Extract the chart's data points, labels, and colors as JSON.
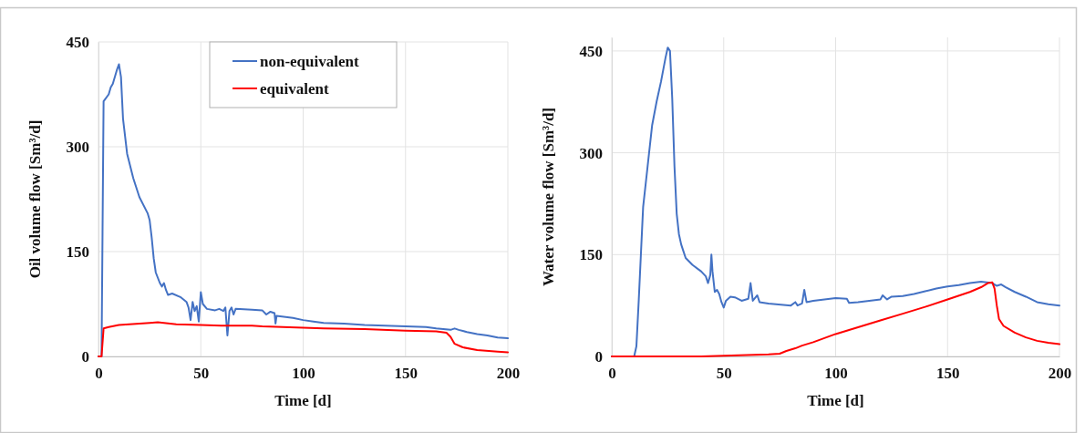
{
  "chart_data": [
    {
      "type": "line",
      "xlabel": "Time [d]",
      "ylabel": "Oil volume flow [Sm³/d]",
      "xlim": [
        0,
        200
      ],
      "xticks": [
        0,
        50,
        100,
        150,
        200
      ],
      "ylim": [
        0,
        450
      ],
      "yticks": [
        0,
        150,
        300,
        450
      ],
      "grid": true,
      "legend": "top",
      "line_style": "solid",
      "marker": "none",
      "series": [
        {
          "name": "non-equivalent",
          "color": "#4472c4",
          "x": [
            0,
            1.5,
            2.5,
            3,
            5,
            6,
            7,
            9,
            10,
            11,
            12,
            14,
            17,
            20,
            24,
            25,
            26,
            27,
            28,
            30,
            31,
            32,
            33,
            34,
            36,
            40,
            43,
            44,
            45,
            46,
            47,
            48,
            49,
            50,
            51,
            53,
            57,
            59,
            61,
            62,
            63,
            64,
            65,
            66,
            67,
            75,
            80,
            82,
            84,
            86,
            86.5,
            87,
            95,
            100,
            105,
            110,
            120,
            130,
            140,
            150,
            160,
            165,
            172,
            174,
            176,
            180,
            185,
            190,
            195,
            200
          ],
          "values": [
            0,
            0,
            365,
            367,
            375,
            385,
            390,
            410,
            418,
            400,
            340,
            290,
            255,
            228,
            205,
            195,
            170,
            140,
            120,
            105,
            100,
            105,
            95,
            88,
            90,
            85,
            78,
            70,
            52,
            78,
            65,
            72,
            50,
            92,
            75,
            68,
            66,
            68,
            65,
            70,
            30,
            65,
            70,
            60,
            68,
            67,
            66,
            60,
            64,
            62,
            47,
            58,
            55,
            52,
            50,
            48,
            47,
            45,
            44,
            43,
            42,
            40,
            38,
            40,
            38,
            35,
            32,
            30,
            27,
            26
          ]
        },
        {
          "name": "equivalent",
          "color": "#ff0000",
          "x": [
            0,
            1.5,
            2.5,
            5,
            10,
            20,
            25,
            29,
            32,
            38,
            50,
            60,
            75,
            80,
            90,
            100,
            110,
            130,
            150,
            165,
            170,
            172,
            174,
            178,
            185,
            195,
            200
          ],
          "values": [
            0,
            0,
            40,
            42,
            45,
            47,
            48,
            49,
            48,
            46,
            45,
            44,
            44,
            43,
            42,
            41,
            40,
            39,
            37,
            36,
            34,
            28,
            18,
            13,
            9,
            7,
            6
          ]
        }
      ]
    },
    {
      "type": "line",
      "xlabel": "Time [d]",
      "ylabel": "Water volume flow [Sm³/d]",
      "xlim": [
        0,
        200
      ],
      "xticks": [
        0,
        50,
        100,
        150,
        200
      ],
      "ylim": [
        0,
        470
      ],
      "yticks": [
        0,
        150,
        300,
        450
      ],
      "grid": true,
      "line_style": "solid",
      "marker": "none",
      "series": [
        {
          "color": "#4472c4",
          "x": [
            0,
            10,
            11,
            12,
            13,
            14,
            16,
            18,
            20,
            22,
            24,
            25,
            26,
            27,
            28,
            29,
            30,
            31,
            32,
            33,
            36,
            40,
            42,
            43,
            44,
            44.5,
            45,
            46,
            47,
            48,
            49,
            50,
            51,
            53,
            55,
            58,
            61,
            62,
            63,
            65,
            66,
            70,
            80,
            82,
            83,
            85,
            86,
            87,
            90,
            95,
            100,
            105,
            106,
            110,
            115,
            120,
            121,
            123,
            125,
            130,
            135,
            140,
            145,
            150,
            155,
            160,
            165,
            170,
            172,
            174,
            176,
            180,
            185,
            190,
            195,
            200
          ],
          "values": [
            0,
            0,
            15,
            80,
            150,
            220,
            280,
            340,
            375,
            405,
            440,
            455,
            450,
            380,
            280,
            210,
            180,
            165,
            155,
            145,
            135,
            125,
            118,
            108,
            120,
            150,
            125,
            95,
            98,
            92,
            80,
            72,
            82,
            88,
            87,
            82,
            85,
            108,
            82,
            90,
            80,
            78,
            75,
            80,
            75,
            78,
            98,
            80,
            82,
            84,
            86,
            85,
            79,
            80,
            82,
            84,
            90,
            84,
            88,
            89,
            92,
            96,
            100,
            103,
            105,
            108,
            110,
            108,
            104,
            106,
            102,
            95,
            88,
            80,
            77,
            75
          ]
        },
        {
          "color": "#ff0000",
          "x": [
            0,
            40,
            50,
            60,
            70,
            75,
            78,
            82,
            85,
            90,
            95,
            100,
            105,
            110,
            120,
            130,
            140,
            150,
            160,
            165,
            168,
            170,
            171,
            172,
            173,
            175,
            180,
            185,
            190,
            195,
            200
          ],
          "values": [
            0,
            0,
            1,
            2,
            3,
            4,
            8,
            12,
            16,
            21,
            27,
            33,
            38,
            43,
            53,
            63,
            73,
            84,
            95,
            102,
            108,
            109,
            100,
            75,
            55,
            45,
            35,
            28,
            23,
            20,
            18
          ]
        }
      ]
    }
  ]
}
